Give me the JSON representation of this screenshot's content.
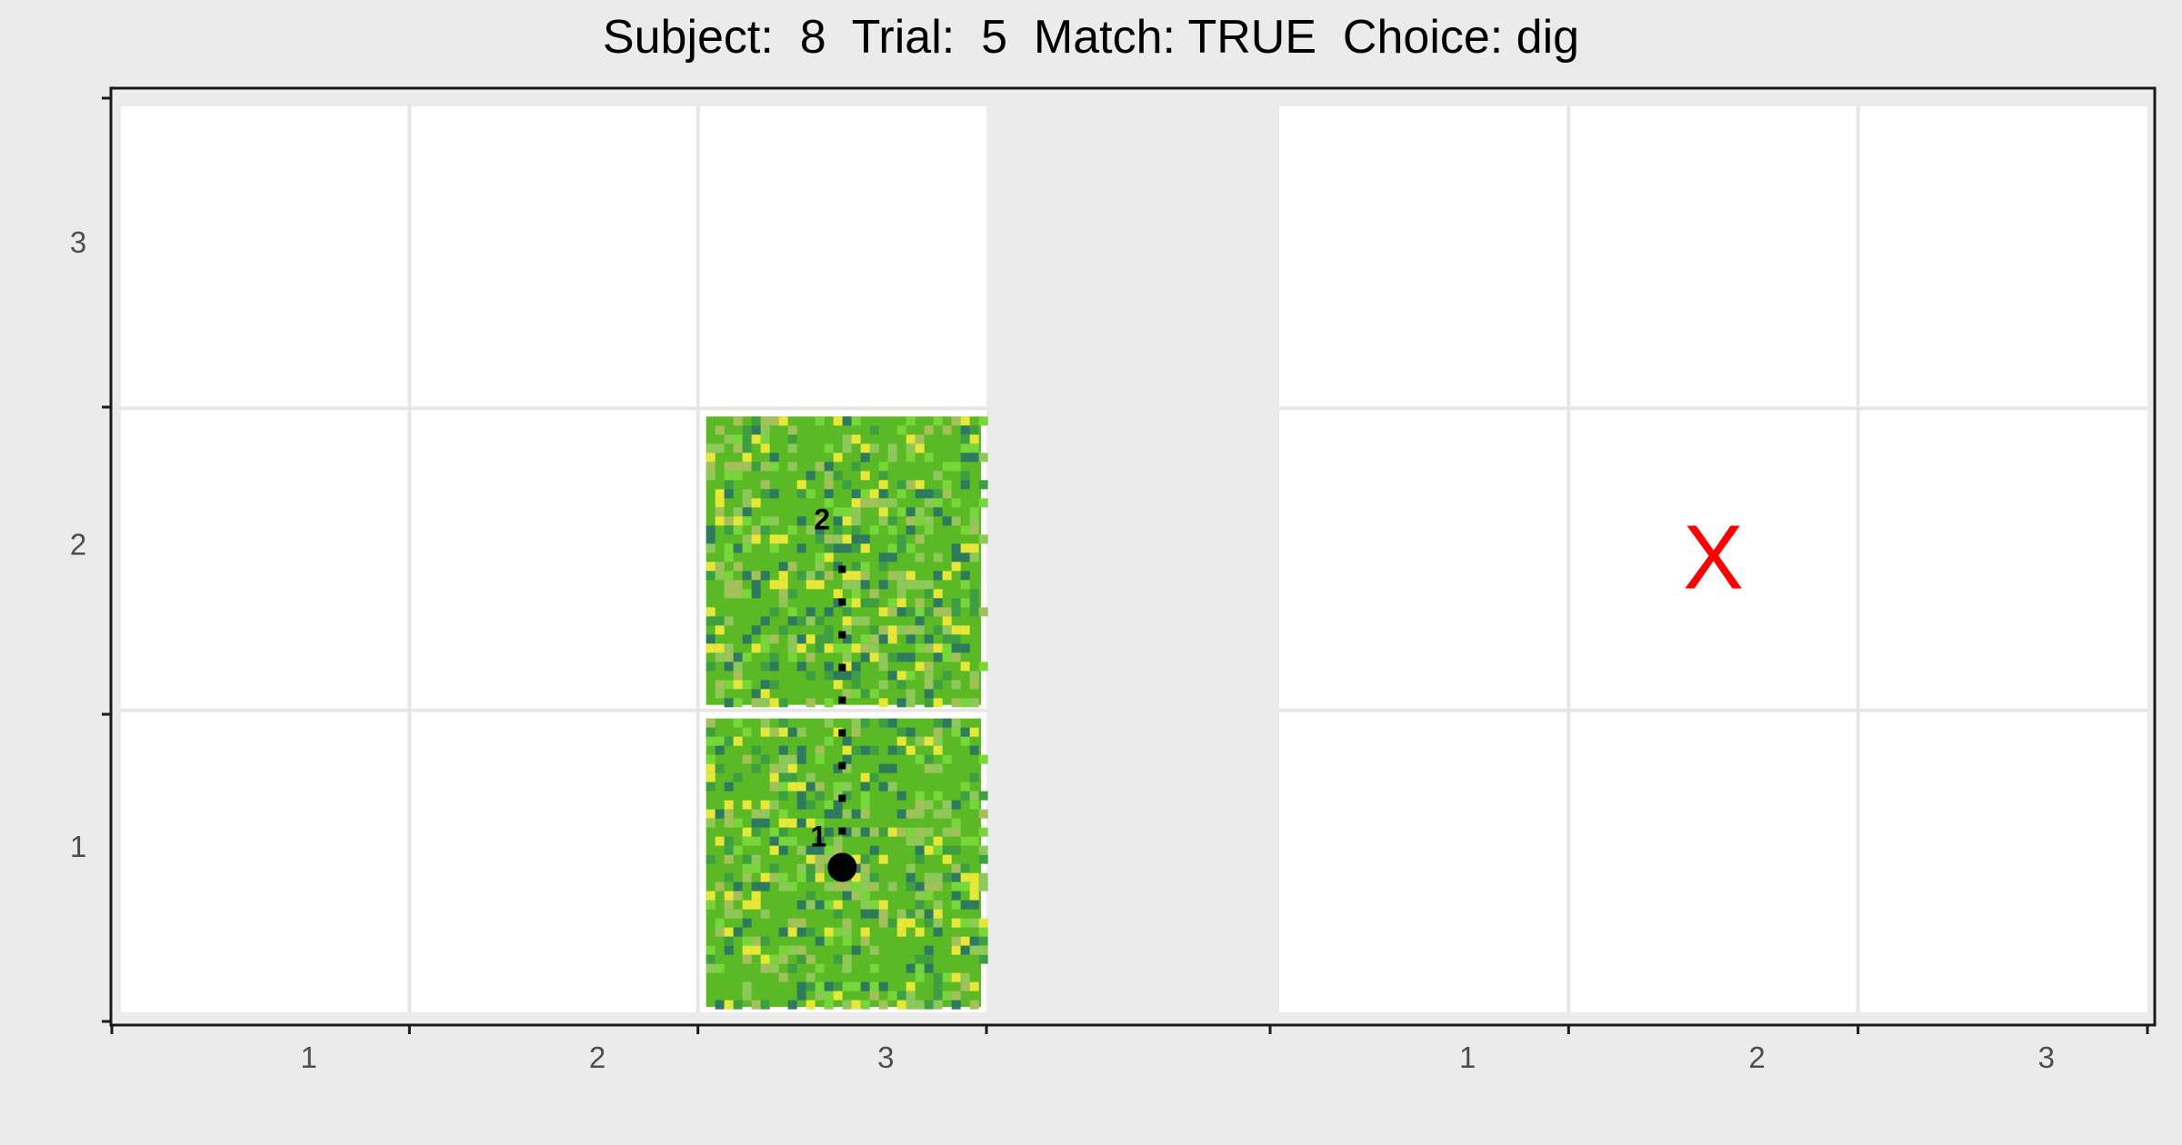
{
  "chart_data": {
    "type": "scatter",
    "title": "Subject:  8  Trial:  5  Match: TRUE  Choice: dig",
    "xlabel": "",
    "ylabel": "",
    "grid": true,
    "colors": {
      "background": "#ebebeb",
      "panel": "#ffffff",
      "gridline": "#e6e6e6",
      "path": "#000000",
      "marker_x": "#ff0000",
      "grass_palette": [
        "#5ab924",
        "#76d63a",
        "#8ec85a",
        "#3e9e42",
        "#2d7a5e",
        "#e7e73a",
        "#a3c05a"
      ]
    },
    "panels": [
      {
        "name": "left",
        "x_ticks": [
          "1",
          "2",
          "3"
        ],
        "y_ticks": [
          "1",
          "2",
          "3"
        ],
        "xlim": [
          0,
          3
        ],
        "ylim": [
          0,
          3
        ],
        "tiles": [
          {
            "col": 3,
            "row": 1,
            "texture": "grass"
          },
          {
            "col": 3,
            "row": 2,
            "texture": "grass"
          }
        ],
        "path": {
          "points": [
            {
              "x": 2.5,
              "y": 0.48
            },
            {
              "x": 2.5,
              "y": 1.55
            }
          ],
          "style": "dotted"
        },
        "point": {
          "x": 2.5,
          "y": 0.48,
          "label": "1"
        },
        "end_label": {
          "x": 2.43,
          "y": 1.6,
          "label": "2"
        }
      },
      {
        "name": "right",
        "x_ticks": [
          "1",
          "2",
          "3"
        ],
        "y_ticks": [],
        "xlim": [
          0,
          3
        ],
        "ylim": [
          0,
          3
        ],
        "marker": {
          "x": 1.5,
          "y": 1.5,
          "label": "X"
        }
      }
    ]
  }
}
